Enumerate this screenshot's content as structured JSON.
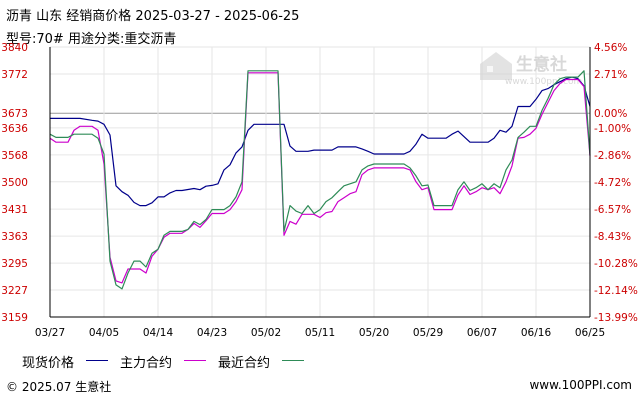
{
  "header": {
    "title": "沥青  山东  经销商价格  2025-03-27 - 2025-06-25",
    "subtitle": "型号:70#  用途分类:重交沥青"
  },
  "watermark": {
    "text": "生意社",
    "url": "www.100ppi.com"
  },
  "legend": {
    "items": [
      {
        "label": "现货价格",
        "color": "#00008b"
      },
      {
        "label": "主力合约",
        "color": "#cc00cc"
      },
      {
        "label": "最近合约",
        "color": "#2e8b57"
      }
    ]
  },
  "footer": {
    "left": "© 2025.07 生意社",
    "right": "www.100PPI.com"
  },
  "chart_data": {
    "type": "line",
    "title": "沥青  山东  经销商价格  2025-03-27 - 2025-06-25",
    "xlabel": "",
    "ylabel": "",
    "x_tick_labels": [
      "03/27",
      "04/05",
      "04/14",
      "04/23",
      "05/02",
      "05/11",
      "05/20",
      "05/29",
      "06/07",
      "06/16",
      "06/25"
    ],
    "y_tick_labels": [
      "3840",
      "3772",
      "3673",
      "3636",
      "3568",
      "3500",
      "3431",
      "3363",
      "3295",
      "3227",
      "3159"
    ],
    "y_tick_values": [
      3840,
      3772,
      3673,
      3636,
      3568,
      3500,
      3431,
      3363,
      3295,
      3227,
      3159
    ],
    "y2_tick_labels": [
      "4.56%",
      "2.71%",
      "0.00%",
      "-1.00%",
      "-2.86%",
      "-4.72%",
      "-6.57%",
      "-8.43%",
      "-10.28%",
      "-12.14%",
      "-13.99%"
    ],
    "ylim": [
      3159,
      3840
    ],
    "xlim": [
      "03/27",
      "06/25"
    ],
    "baseline": {
      "value": 3673,
      "label": "0.00%"
    },
    "grid": true,
    "legend_position": "bottom",
    "series": [
      {
        "name": "现货价格",
        "color": "#00008b",
        "points": [
          [
            0,
            3660
          ],
          [
            5,
            3660
          ],
          [
            7,
            3655
          ],
          [
            8,
            3653
          ],
          [
            9,
            3645
          ],
          [
            10,
            3618
          ],
          [
            11,
            3490
          ],
          [
            12,
            3475
          ],
          [
            13,
            3466
          ],
          [
            14,
            3448
          ],
          [
            15,
            3440
          ],
          [
            16,
            3440
          ],
          [
            17,
            3447
          ],
          [
            18,
            3462
          ],
          [
            19,
            3462
          ],
          [
            20,
            3472
          ],
          [
            21,
            3478
          ],
          [
            22,
            3478
          ],
          [
            24,
            3483
          ],
          [
            25,
            3480
          ],
          [
            26,
            3489
          ],
          [
            27,
            3491
          ],
          [
            28,
            3495
          ],
          [
            29,
            3530
          ],
          [
            30,
            3543
          ],
          [
            31,
            3573
          ],
          [
            32,
            3588
          ],
          [
            33,
            3630
          ],
          [
            34,
            3645
          ],
          [
            36,
            3645
          ],
          [
            38,
            3645
          ],
          [
            39,
            3645
          ],
          [
            40,
            3590
          ],
          [
            41,
            3577
          ],
          [
            43,
            3577
          ],
          [
            44,
            3580
          ],
          [
            45,
            3580
          ],
          [
            47,
            3580
          ],
          [
            48,
            3588
          ],
          [
            51,
            3588
          ],
          [
            52,
            3583
          ],
          [
            53,
            3577
          ],
          [
            54,
            3570
          ],
          [
            59,
            3570
          ],
          [
            60,
            3577
          ],
          [
            61,
            3595
          ],
          [
            62,
            3620
          ],
          [
            63,
            3610
          ],
          [
            66,
            3610
          ],
          [
            67,
            3620
          ],
          [
            68,
            3628
          ],
          [
            70,
            3600
          ],
          [
            71,
            3600
          ],
          [
            73,
            3600
          ],
          [
            74,
            3610
          ],
          [
            75,
            3630
          ],
          [
            76,
            3625
          ],
          [
            77,
            3640
          ],
          [
            78,
            3690
          ],
          [
            80,
            3690
          ],
          [
            81,
            3708
          ],
          [
            82,
            3730
          ],
          [
            83,
            3735
          ],
          [
            84,
            3745
          ],
          [
            86,
            3760
          ],
          [
            87,
            3764
          ],
          [
            88,
            3760
          ],
          [
            89,
            3742
          ],
          [
            90,
            3690
          ]
        ]
      },
      {
        "name": "主力合约",
        "color": "#cc00cc",
        "points": [
          [
            0,
            3610
          ],
          [
            1,
            3600
          ],
          [
            3,
            3600
          ],
          [
            4,
            3630
          ],
          [
            5,
            3640
          ],
          [
            6,
            3640
          ],
          [
            7,
            3640
          ],
          [
            8,
            3630
          ],
          [
            9,
            3545
          ],
          [
            10,
            3310
          ],
          [
            11,
            3250
          ],
          [
            12,
            3245
          ],
          [
            13,
            3280
          ],
          [
            14,
            3280
          ],
          [
            15,
            3280
          ],
          [
            16,
            3270
          ],
          [
            17,
            3312
          ],
          [
            18,
            3330
          ],
          [
            19,
            3360
          ],
          [
            20,
            3370
          ],
          [
            22,
            3370
          ],
          [
            23,
            3380
          ],
          [
            24,
            3395
          ],
          [
            25,
            3385
          ],
          [
            26,
            3402
          ],
          [
            27,
            3420
          ],
          [
            29,
            3420
          ],
          [
            30,
            3430
          ],
          [
            31,
            3450
          ],
          [
            32,
            3480
          ],
          [
            33,
            3775
          ],
          [
            36,
            3775
          ],
          [
            37,
            3775
          ],
          [
            38,
            3775
          ],
          [
            39,
            3365
          ],
          [
            40,
            3400
          ],
          [
            41,
            3393
          ],
          [
            42,
            3418
          ],
          [
            44,
            3418
          ],
          [
            45,
            3410
          ],
          [
            46,
            3422
          ],
          [
            47,
            3425
          ],
          [
            48,
            3450
          ],
          [
            49,
            3460
          ],
          [
            50,
            3470
          ],
          [
            51,
            3475
          ],
          [
            52,
            3518
          ],
          [
            53,
            3530
          ],
          [
            54,
            3535
          ],
          [
            59,
            3535
          ],
          [
            60,
            3530
          ],
          [
            61,
            3500
          ],
          [
            62,
            3480
          ],
          [
            63,
            3485
          ],
          [
            64,
            3430
          ],
          [
            67,
            3430
          ],
          [
            68,
            3467
          ],
          [
            69,
            3490
          ],
          [
            70,
            3468
          ],
          [
            71,
            3475
          ],
          [
            72,
            3485
          ],
          [
            73,
            3480
          ],
          [
            74,
            3485
          ],
          [
            75,
            3470
          ],
          [
            76,
            3500
          ],
          [
            77,
            3540
          ],
          [
            78,
            3610
          ],
          [
            79,
            3612
          ],
          [
            80,
            3620
          ],
          [
            81,
            3635
          ],
          [
            82,
            3670
          ],
          [
            83,
            3700
          ],
          [
            84,
            3730
          ],
          [
            85,
            3748
          ],
          [
            86,
            3758
          ],
          [
            88,
            3758
          ],
          [
            89,
            3740
          ],
          [
            90,
            3565
          ]
        ]
      },
      {
        "name": "最近合约",
        "color": "#2e8b57",
        "points": [
          [
            0,
            3620
          ],
          [
            1,
            3612
          ],
          [
            3,
            3612
          ],
          [
            4,
            3620
          ],
          [
            5,
            3620
          ],
          [
            7,
            3620
          ],
          [
            8,
            3610
          ],
          [
            9,
            3570
          ],
          [
            10,
            3300
          ],
          [
            11,
            3240
          ],
          [
            12,
            3230
          ],
          [
            13,
            3270
          ],
          [
            14,
            3300
          ],
          [
            15,
            3300
          ],
          [
            16,
            3285
          ],
          [
            17,
            3320
          ],
          [
            18,
            3330
          ],
          [
            19,
            3365
          ],
          [
            20,
            3375
          ],
          [
            22,
            3375
          ],
          [
            23,
            3380
          ],
          [
            24,
            3400
          ],
          [
            25,
            3392
          ],
          [
            26,
            3405
          ],
          [
            27,
            3430
          ],
          [
            29,
            3430
          ],
          [
            30,
            3440
          ],
          [
            31,
            3462
          ],
          [
            32,
            3500
          ],
          [
            33,
            3780
          ],
          [
            36,
            3780
          ],
          [
            37,
            3780
          ],
          [
            38,
            3780
          ],
          [
            39,
            3375
          ],
          [
            40,
            3440
          ],
          [
            41,
            3426
          ],
          [
            42,
            3420
          ],
          [
            43,
            3440
          ],
          [
            44,
            3420
          ],
          [
            45,
            3430
          ],
          [
            46,
            3450
          ],
          [
            47,
            3460
          ],
          [
            48,
            3475
          ],
          [
            49,
            3490
          ],
          [
            50,
            3495
          ],
          [
            51,
            3500
          ],
          [
            52,
            3530
          ],
          [
            53,
            3540
          ],
          [
            54,
            3545
          ],
          [
            59,
            3545
          ],
          [
            60,
            3535
          ],
          [
            61,
            3515
          ],
          [
            62,
            3490
          ],
          [
            63,
            3492
          ],
          [
            64,
            3440
          ],
          [
            67,
            3440
          ],
          [
            68,
            3480
          ],
          [
            69,
            3500
          ],
          [
            70,
            3478
          ],
          [
            71,
            3485
          ],
          [
            72,
            3495
          ],
          [
            73,
            3480
          ],
          [
            74,
            3495
          ],
          [
            75,
            3485
          ],
          [
            76,
            3530
          ],
          [
            77,
            3555
          ],
          [
            78,
            3612
          ],
          [
            79,
            3625
          ],
          [
            80,
            3640
          ],
          [
            81,
            3640
          ],
          [
            82,
            3680
          ],
          [
            83,
            3710
          ],
          [
            84,
            3745
          ],
          [
            85,
            3760
          ],
          [
            86,
            3764
          ],
          [
            88,
            3764
          ],
          [
            89,
            3780
          ],
          [
            90,
            3568
          ]
        ]
      }
    ]
  }
}
